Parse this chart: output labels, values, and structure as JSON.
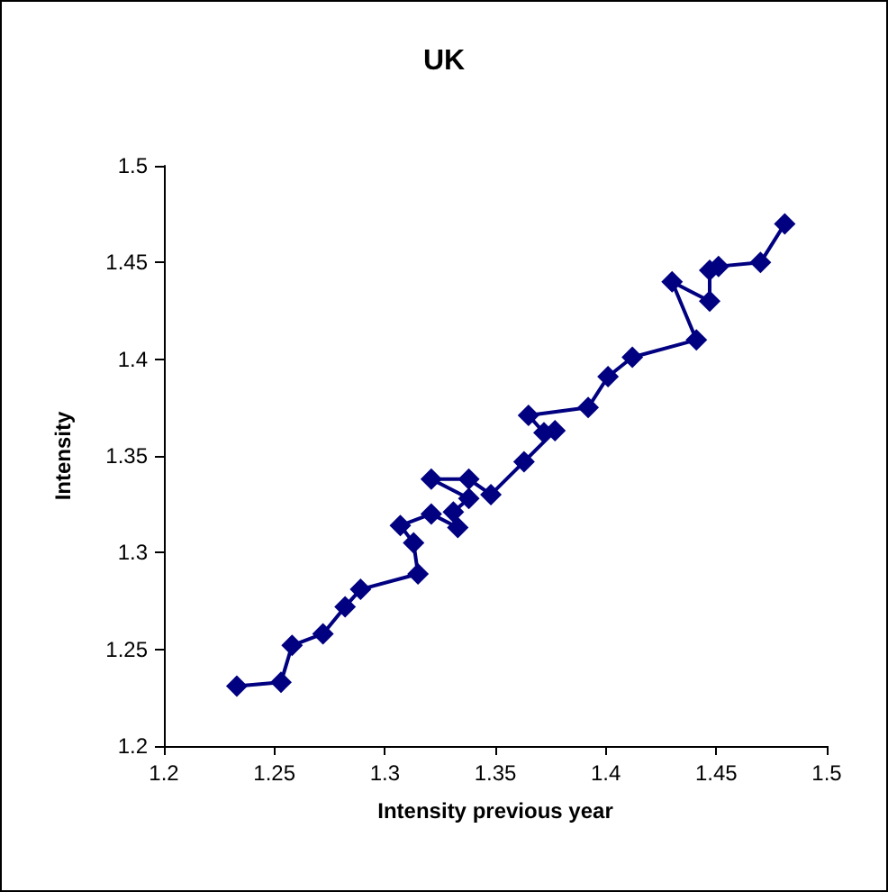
{
  "chart_data": {
    "type": "line",
    "title": "UK",
    "xlabel": "Intensity previous year",
    "ylabel": "Intensity",
    "xlim": [
      1.2,
      1.5
    ],
    "xticks": [
      1.2,
      1.25,
      1.3,
      1.35,
      1.4,
      1.45,
      1.5
    ],
    "ylim": [
      1.2,
      1.5
    ],
    "yticks": [
      1.2,
      1.25,
      1.3,
      1.35,
      1.4,
      1.45,
      1.5
    ],
    "grid": false,
    "marker": "diamond",
    "line_style": "solid",
    "series": [
      {
        "color": "#000080",
        "x": [
          1.233,
          1.253,
          1.258,
          1.272,
          1.282,
          1.289,
          1.315,
          1.313,
          1.307,
          1.321,
          1.333,
          1.331,
          1.338,
          1.321,
          1.338,
          1.348,
          1.363,
          1.377,
          1.372,
          1.365,
          1.392,
          1.401,
          1.412,
          1.441,
          1.43,
          1.447,
          1.447,
          1.451,
          1.47,
          1.481
        ],
        "values": [
          1.231,
          1.233,
          1.252,
          1.258,
          1.272,
          1.281,
          1.289,
          1.305,
          1.314,
          1.32,
          1.313,
          1.321,
          1.328,
          1.338,
          1.338,
          1.33,
          1.347,
          1.363,
          1.362,
          1.371,
          1.375,
          1.391,
          1.401,
          1.41,
          1.44,
          1.43,
          1.446,
          1.448,
          1.45,
          1.47
        ]
      }
    ]
  }
}
